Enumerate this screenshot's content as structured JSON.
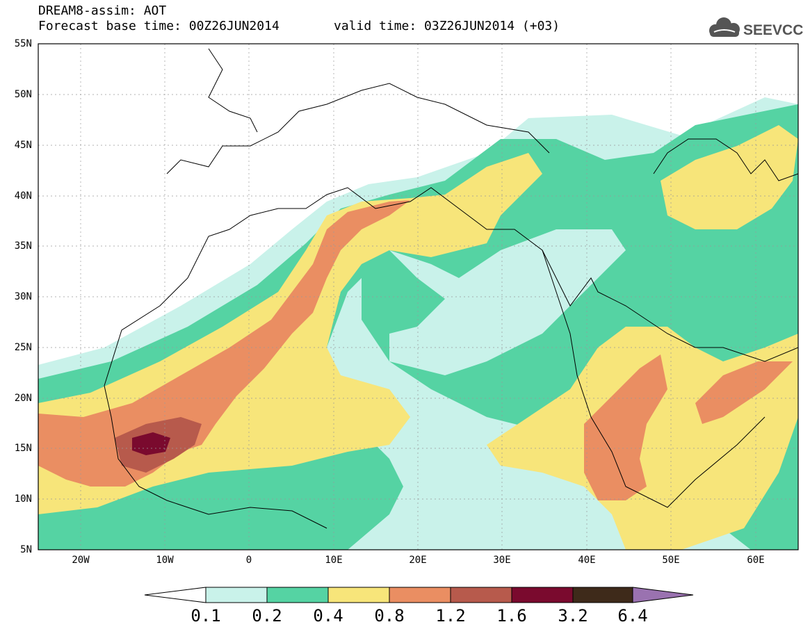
{
  "header": {
    "title": "DREAM8-assim: AOT",
    "base_time": "Forecast base time: 00Z26JUN2014",
    "valid_time": "valid time: 03Z26JUN2014 (+03)"
  },
  "logo": {
    "text": "SEEVCCC",
    "icon": "cloud-icon"
  },
  "map": {
    "lat_labels": [
      "55N",
      "50N",
      "45N",
      "40N",
      "35N",
      "30N",
      "25N",
      "20N",
      "15N",
      "10N",
      "5N"
    ],
    "lon_labels": [
      "20W",
      "10W",
      "0",
      "10E",
      "20E",
      "30E",
      "40E",
      "50E",
      "60E"
    ]
  },
  "colorbar": {
    "labels": [
      "0.1",
      "0.2",
      "0.4",
      "0.8",
      "1.2",
      "1.6",
      "3.2",
      "6.4"
    ],
    "colors": [
      "#ffffff",
      "#c9f2ea",
      "#55d3a3",
      "#f7e57a",
      "#ea8e62",
      "#b75a4c",
      "#7a0a2e",
      "#3e2a1a",
      "#9a72b0"
    ]
  }
}
